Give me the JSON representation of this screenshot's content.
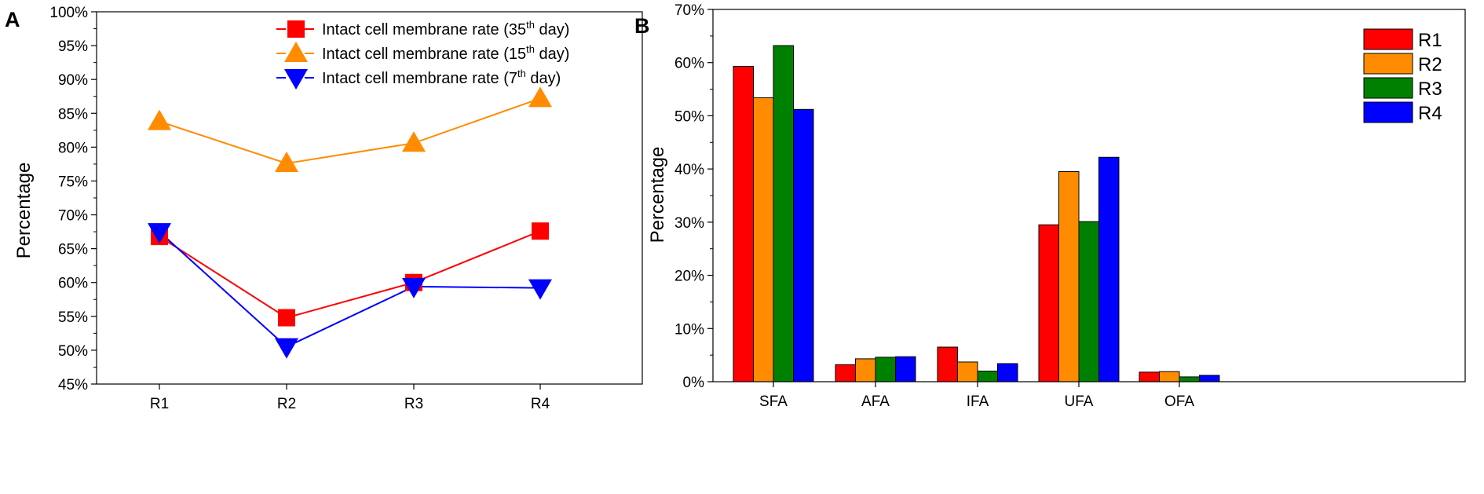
{
  "chart_data": [
    {
      "panel": "A",
      "type": "line",
      "ylabel": "Percentage",
      "xlabel": "",
      "ylim": [
        45,
        100
      ],
      "yticks": [
        "45%",
        "50%",
        "55%",
        "60%",
        "65%",
        "70%",
        "75%",
        "80%",
        "85%",
        "90%",
        "95%",
        "100%"
      ],
      "categories": [
        "R1",
        "R2",
        "R3",
        "R4"
      ],
      "legend_position": "top-right",
      "series": [
        {
          "name": "Intact cell membrane rate (35th day)",
          "label_main": "Intact cell membrane rate (35",
          "label_sup": "th",
          "label_tail": " day)",
          "color": "#ff0000",
          "marker": "square",
          "values": [
            66.8,
            54.8,
            60.0,
            67.6
          ]
        },
        {
          "name": "Intact cell membrane rate (15th day)",
          "label_main": "Intact cell membrane rate (15",
          "label_sup": "th",
          "label_tail": " day)",
          "color": "#ff8c00",
          "marker": "triangle-up",
          "values": [
            83.8,
            77.6,
            80.6,
            87.2
          ]
        },
        {
          "name": "Intact cell membrane rate (7th day)",
          "label_main": "Intact cell membrane rate (7",
          "label_sup": "th",
          "label_tail": " day)",
          "color": "#0000ff",
          "marker": "triangle-down",
          "values": [
            67.5,
            50.5,
            59.4,
            59.2
          ]
        }
      ]
    },
    {
      "panel": "B",
      "type": "bar",
      "ylabel": "Percentage",
      "xlabel": "",
      "ylim": [
        0,
        70
      ],
      "yticks": [
        "0%",
        "10%",
        "20%",
        "30%",
        "40%",
        "50%",
        "60%",
        "70%"
      ],
      "categories": [
        "SFA",
        "AFA",
        "IFA",
        "UFA",
        "OFA"
      ],
      "legend_position": "top-right",
      "series": [
        {
          "name": "R1",
          "color": "#ff0000",
          "values": [
            59.3,
            3.2,
            6.5,
            29.5,
            1.8
          ]
        },
        {
          "name": "R2",
          "color": "#ff8c00",
          "values": [
            53.4,
            4.3,
            3.7,
            39.5,
            1.9
          ]
        },
        {
          "name": "R3",
          "color": "#008000",
          "values": [
            63.2,
            4.6,
            2.0,
            30.1,
            0.9
          ]
        },
        {
          "name": "R4",
          "color": "#0000ff",
          "values": [
            51.2,
            4.7,
            3.4,
            42.2,
            1.2
          ]
        }
      ]
    }
  ]
}
